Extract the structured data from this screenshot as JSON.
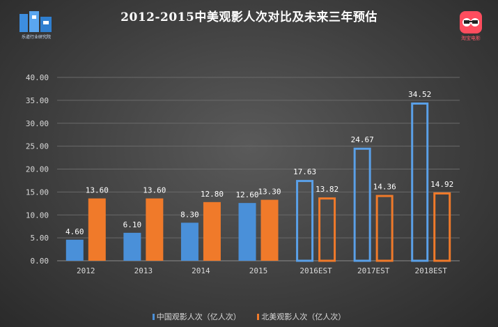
{
  "title": "2012-2015中美观影人次对比及未来三年预估",
  "logos": {
    "left_text": "乐道行业研究院",
    "right_text": "淘宝电影"
  },
  "colors": {
    "china": "#4a90d9",
    "china_outline": "#5aa0e8",
    "usa": "#f07a2a",
    "usa_outline": "#f07a2a",
    "text": "#ffffff",
    "axis_text": "#d9d9d9",
    "grid": "#6a6a6a"
  },
  "chart_data": {
    "type": "bar",
    "title": "2012-2015中美观影人次对比及未来三年预估",
    "categories": [
      "2012",
      "2013",
      "2014",
      "2015",
      "2016EST",
      "2017EST",
      "2018EST"
    ],
    "series": [
      {
        "name": "中国观影人次（亿人次）",
        "values": [
          4.6,
          6.1,
          8.3,
          12.6,
          17.63,
          24.67,
          34.52
        ],
        "labels": [
          "4.60",
          "6.10",
          "8.30",
          "12.60",
          "17.63",
          "24.67",
          "34.52"
        ]
      },
      {
        "name": "北美观影人次（亿人次）",
        "values": [
          13.6,
          13.6,
          12.8,
          13.3,
          13.82,
          14.36,
          14.92
        ],
        "labels": [
          "13.60",
          "13.60",
          "12.80",
          "13.30",
          "13.82",
          "14.36",
          "14.92"
        ]
      }
    ],
    "estimated_from_index": 4,
    "ylim": [
      0,
      40
    ],
    "yticks": [
      "0.00",
      "5.00",
      "10.00",
      "15.00",
      "20.00",
      "25.00",
      "30.00",
      "35.00",
      "40.00"
    ],
    "grid": true,
    "legend_position": "bottom"
  }
}
